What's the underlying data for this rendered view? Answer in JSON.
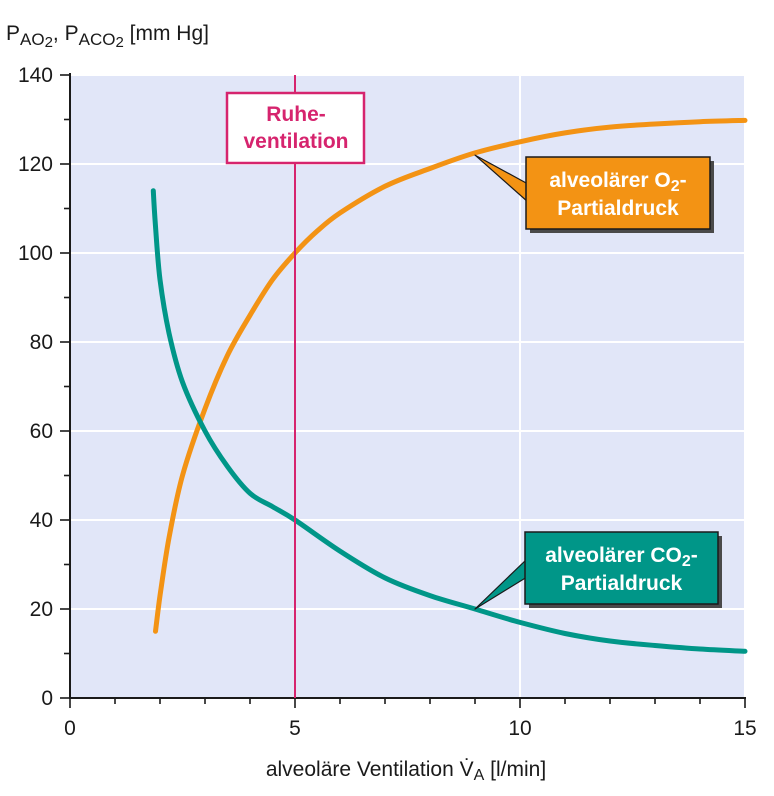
{
  "chart_data": {
    "type": "line",
    "ylabel": {
      "parts": [
        {
          "t": "P"
        },
        {
          "t": "AO",
          "sub": true
        },
        {
          "t": "2",
          "sub2": true
        },
        {
          "t": ", P"
        },
        {
          "t": "ACO",
          "sub": true
        },
        {
          "t": "2",
          "sub2": true
        },
        {
          "t": " [mm Hg]"
        }
      ]
    },
    "xlabel": {
      "parts": [
        {
          "t": "alveoläre Ventilation "
        },
        {
          "t": "V̇"
        },
        {
          "t": "A",
          "sub": true
        },
        {
          "t": " [l/min]"
        }
      ]
    },
    "xlim": [
      0,
      15
    ],
    "ylim": [
      0,
      140
    ],
    "xticks": [
      0,
      5,
      10,
      15
    ],
    "yticks": [
      0,
      20,
      40,
      60,
      80,
      100,
      120,
      140
    ],
    "x_minor_step": 1,
    "y_minor_step": 10,
    "grid": true,
    "background": "#e1e6f8",
    "series": [
      {
        "key": "o2",
        "color": "#f39314",
        "x": [
          1.9,
          2.0,
          2.2,
          2.5,
          3.0,
          3.5,
          4.0,
          4.5,
          5.0,
          5.5,
          6.0,
          7.0,
          8.0,
          9.0,
          10.0,
          11.0,
          12.0,
          13.0,
          14.0,
          15.0
        ],
        "y": [
          15,
          23,
          36,
          50,
          65,
          77,
          86,
          94,
          100,
          105,
          109,
          115,
          119,
          122.5,
          125,
          127,
          128.3,
          129,
          129.5,
          129.8
        ]
      },
      {
        "key": "co2",
        "color": "#009688",
        "x": [
          1.85,
          1.9,
          2.0,
          2.2,
          2.5,
          3.0,
          3.5,
          4.0,
          4.5,
          5.0,
          6.0,
          7.0,
          8.0,
          9.0,
          10.0,
          11.0,
          12.0,
          13.0,
          14.0,
          15.0
        ],
        "y": [
          114,
          106,
          94,
          82,
          71,
          60,
          52,
          46,
          43,
          40,
          33,
          27,
          23,
          20,
          17,
          14.5,
          12.8,
          11.8,
          11,
          10.5
        ]
      }
    ],
    "reference_line": {
      "x": 5,
      "color": "#d6246e",
      "label_lines": [
        "Ruhe-",
        "ventilation"
      ]
    },
    "annotations": [
      {
        "key": "o2",
        "line1": [
          {
            "t": "alveolärer O"
          },
          {
            "t": "2",
            "sub": true
          },
          {
            "t": "-"
          }
        ],
        "line2": "Partialdruck",
        "fill": "#f39314",
        "text_color": "#ffffff",
        "points_to": [
          9.0,
          122
        ]
      },
      {
        "key": "co2",
        "line1": [
          {
            "t": "alveolärer  CO"
          },
          {
            "t": "2",
            "sub": true
          },
          {
            "t": "-"
          }
        ],
        "line2": "Partialdruck",
        "fill": "#009688",
        "text_color": "#ffffff",
        "points_to": [
          9.0,
          20
        ]
      }
    ]
  }
}
